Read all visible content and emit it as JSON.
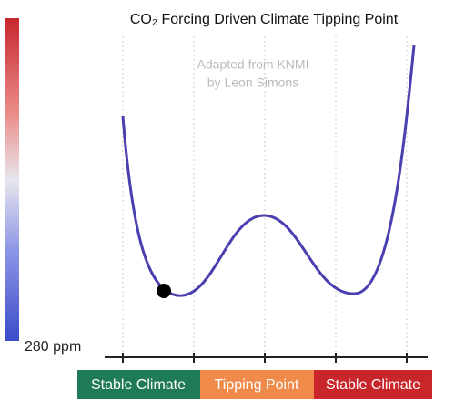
{
  "title": "CO₂ Forcing Driven Climate Tipping Point",
  "credit": {
    "line1": "Adapted from KNMI",
    "line2": "by Leon Simons"
  },
  "scale_label": "280 ppm",
  "states": [
    "Stable Climate",
    "Tipping Point",
    "Stable Climate"
  ]
}
